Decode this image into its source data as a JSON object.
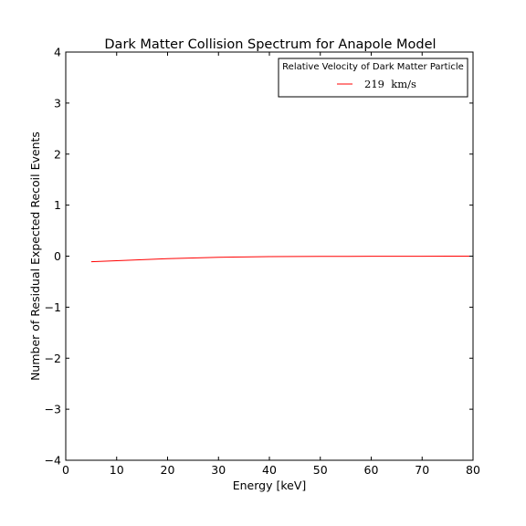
{
  "chart_data": {
    "type": "line",
    "title": "Dark Matter Collision Spectrum for Anapole Model",
    "xlabel": "Energy [keV]",
    "ylabel": "Number of Residual Expected Recoil Events",
    "xlim": [
      0,
      80
    ],
    "ylim": [
      -4,
      4
    ],
    "xticks": [
      0,
      10,
      20,
      30,
      40,
      50,
      60,
      70,
      80
    ],
    "yticks": [
      -4,
      -3,
      -2,
      -1,
      0,
      1,
      2,
      3,
      4
    ],
    "xtick_labels": [
      "0",
      "10",
      "20",
      "30",
      "40",
      "50",
      "60",
      "70",
      "80"
    ],
    "ytick_labels": [
      "−4",
      "−3",
      "−2",
      "−1",
      "0",
      "1",
      "2",
      "3",
      "4"
    ],
    "grid": false,
    "legend": {
      "title": "Relative Velocity of Dark Matter Particle",
      "placement": "top-right"
    },
    "series": [
      {
        "name": "219  km/s",
        "color": "#ff0000",
        "x": [
          5,
          10,
          15,
          20,
          25,
          30,
          35,
          40,
          45,
          50,
          55,
          60,
          65,
          70,
          75,
          80
        ],
        "values": [
          -0.11,
          -0.09,
          -0.07,
          -0.05,
          -0.035,
          -0.022,
          -0.015,
          -0.01,
          -0.007,
          -0.005,
          -0.004,
          -0.003,
          -0.002,
          -0.002,
          -0.001,
          -0.001
        ]
      }
    ]
  }
}
